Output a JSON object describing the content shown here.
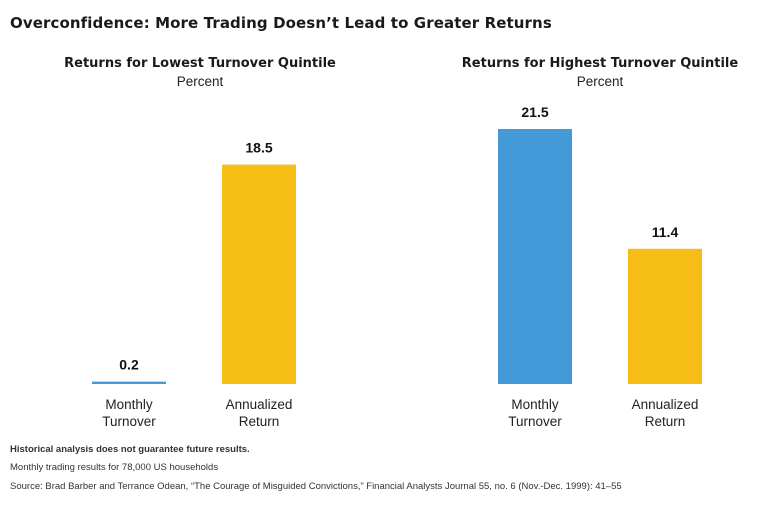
{
  "title": "Overconfidence: More Trading Doesn’t Lead to Greater Returns",
  "footnotes": {
    "disclaimer": "Historical analysis does not guarantee future results.",
    "note": "Monthly trading results for 78,000 US households",
    "source": "Source: Brad Barber and Terrance Odean, “The Courage of Misguided Convictions,” Financial Analysts Journal 55, no. 6 (Nov.-Dec. 1999): 41–55"
  },
  "colors": {
    "monthly_turnover": "#4499d9",
    "annualized_return": "#f5bd16"
  },
  "chart_data": [
    {
      "type": "bar",
      "title": "Returns for Lowest Turnover Quintile",
      "subtitle": "Percent",
      "categories": [
        [
          "Monthly",
          "Turnover"
        ],
        [
          "Annualized",
          "Return"
        ]
      ],
      "values": [
        0.2,
        18.5
      ],
      "data_labels": [
        "0.2",
        "18.5"
      ],
      "colors": [
        "#4499d9",
        "#f5bd16"
      ],
      "ylim": [
        0,
        21.5
      ],
      "grid": false
    },
    {
      "type": "bar",
      "title": "Returns for Highest Turnover Quintile",
      "subtitle": "Percent",
      "categories": [
        [
          "Monthly",
          "Turnover"
        ],
        [
          "Annualized",
          "Return"
        ]
      ],
      "values": [
        21.5,
        11.4
      ],
      "data_labels": [
        "21.5",
        "11.4"
      ],
      "colors": [
        "#4499d9",
        "#f5bd16"
      ],
      "ylim": [
        0,
        21.5
      ],
      "grid": false
    }
  ]
}
